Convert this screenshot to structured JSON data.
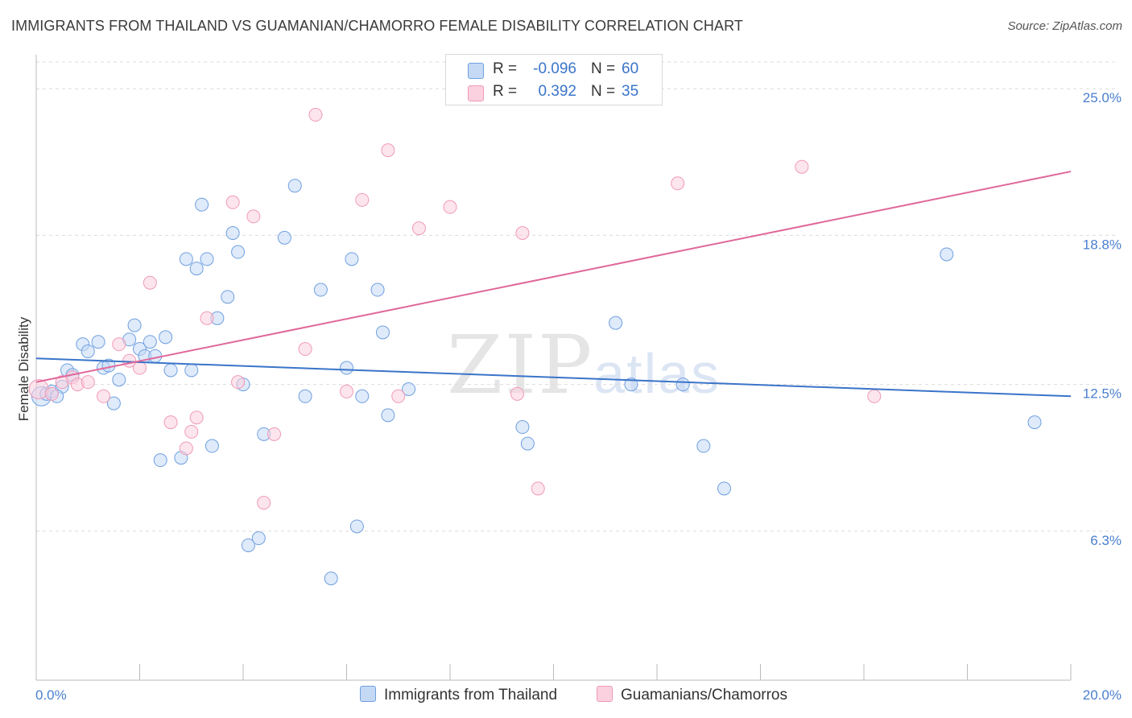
{
  "title": "IMMIGRANTS FROM THAILAND VS GUAMANIAN/CHAMORRO FEMALE DISABILITY CORRELATION CHART",
  "source": "Source: ZipAtlas.com",
  "watermark": {
    "zip": "ZIP",
    "atlas": "atlas"
  },
  "legend": {
    "series1": {
      "r_label": "R =",
      "r_value": "-0.096",
      "n_label": "N =",
      "n_value": "60"
    },
    "series2": {
      "r_label": "R =",
      "r_value": "0.392",
      "n_label": "N =",
      "n_value": "35"
    }
  },
  "bottom_legend": {
    "series1": "Immigrants from Thailand",
    "series2": "Guamanians/Chamorros"
  },
  "colors": {
    "series1": "#6fa0e0",
    "series1_line": "#3a74c9",
    "series1_fill": "#c5d9f5",
    "series2": "#f09ab8",
    "series2_line": "#e0679a",
    "series2_fill": "#fbd0df",
    "axis_text": "#4a7fcf",
    "grid": "#dcdcdc"
  },
  "chart_data": {
    "type": "scatter",
    "title": "IMMIGRANTS FROM THAILAND VS GUAMANIAN/CHAMORRO FEMALE DISABILITY CORRELATION CHART",
    "xlabel": "",
    "ylabel": "Female Disability",
    "xlim": [
      0,
      20
    ],
    "ylim": [
      0,
      26.3
    ],
    "x_tick_labels": [
      "0.0%",
      "20.0%"
    ],
    "y_ticks": [
      6.3,
      12.5,
      18.8,
      25.0
    ],
    "y_tick_labels": [
      "6.3%",
      "12.5%",
      "18.8%",
      "25.0%"
    ],
    "grid": true,
    "series": [
      {
        "name": "Immigrants from Thailand",
        "trend": {
          "x": [
            0,
            20
          ],
          "y": [
            13.6,
            12.0
          ]
        },
        "points": [
          [
            0.1,
            12.0
          ],
          [
            0.2,
            12.1
          ],
          [
            0.3,
            12.2
          ],
          [
            0.5,
            12.4
          ],
          [
            0.6,
            13.1
          ],
          [
            0.7,
            12.9
          ],
          [
            0.4,
            12.0
          ],
          [
            0.9,
            14.2
          ],
          [
            1.0,
            13.9
          ],
          [
            1.2,
            14.3
          ],
          [
            1.3,
            13.2
          ],
          [
            1.4,
            13.3
          ],
          [
            1.5,
            11.7
          ],
          [
            1.6,
            12.7
          ],
          [
            1.8,
            14.4
          ],
          [
            1.9,
            15.0
          ],
          [
            2.0,
            14.0
          ],
          [
            2.1,
            13.7
          ],
          [
            2.2,
            14.3
          ],
          [
            2.3,
            13.7
          ],
          [
            2.5,
            14.5
          ],
          [
            2.4,
            9.3
          ],
          [
            2.6,
            13.1
          ],
          [
            2.8,
            9.4
          ],
          [
            2.9,
            17.8
          ],
          [
            3.0,
            13.1
          ],
          [
            3.1,
            17.4
          ],
          [
            3.2,
            20.1
          ],
          [
            3.3,
            17.8
          ],
          [
            3.4,
            9.9
          ],
          [
            3.5,
            15.3
          ],
          [
            3.7,
            16.2
          ],
          [
            3.8,
            18.9
          ],
          [
            3.9,
            18.1
          ],
          [
            4.0,
            12.5
          ],
          [
            4.1,
            5.7
          ],
          [
            4.3,
            6.0
          ],
          [
            4.4,
            10.4
          ],
          [
            5.0,
            20.9
          ],
          [
            4.8,
            18.7
          ],
          [
            5.2,
            12.0
          ],
          [
            5.5,
            16.5
          ],
          [
            5.7,
            4.3
          ],
          [
            6.0,
            13.2
          ],
          [
            6.1,
            17.8
          ],
          [
            6.2,
            6.5
          ],
          [
            6.3,
            12.0
          ],
          [
            6.6,
            16.5
          ],
          [
            6.7,
            14.7
          ],
          [
            6.8,
            11.2
          ],
          [
            7.2,
            12.3
          ],
          [
            9.4,
            10.7
          ],
          [
            9.5,
            10.0
          ],
          [
            11.2,
            15.1
          ],
          [
            11.5,
            12.5
          ],
          [
            12.5,
            12.5
          ],
          [
            12.9,
            9.9
          ],
          [
            13.3,
            8.1
          ],
          [
            17.6,
            18.0
          ],
          [
            19.3,
            10.9
          ]
        ]
      },
      {
        "name": "Guamanians/Chamorros",
        "trend": {
          "x": [
            0,
            20
          ],
          "y": [
            12.6,
            21.5
          ]
        },
        "points": [
          [
            0.05,
            12.3
          ],
          [
            0.3,
            12.1
          ],
          [
            0.5,
            12.6
          ],
          [
            0.7,
            12.8
          ],
          [
            0.8,
            12.5
          ],
          [
            1.0,
            12.6
          ],
          [
            1.3,
            12.0
          ],
          [
            1.6,
            14.2
          ],
          [
            1.8,
            13.5
          ],
          [
            2.0,
            13.2
          ],
          [
            2.2,
            16.8
          ],
          [
            2.6,
            10.9
          ],
          [
            2.9,
            9.8
          ],
          [
            3.0,
            10.5
          ],
          [
            3.1,
            11.1
          ],
          [
            3.3,
            15.3
          ],
          [
            3.8,
            20.2
          ],
          [
            3.9,
            12.6
          ],
          [
            4.2,
            19.6
          ],
          [
            4.4,
            7.5
          ],
          [
            4.6,
            10.4
          ],
          [
            5.2,
            14.0
          ],
          [
            5.4,
            23.9
          ],
          [
            6.0,
            12.2
          ],
          [
            6.3,
            20.3
          ],
          [
            6.8,
            22.4
          ],
          [
            7.0,
            12.0
          ],
          [
            7.4,
            19.1
          ],
          [
            8.0,
            20.0
          ],
          [
            9.3,
            12.1
          ],
          [
            9.4,
            18.9
          ],
          [
            9.7,
            8.1
          ],
          [
            12.4,
            21.0
          ],
          [
            14.8,
            21.7
          ],
          [
            16.2,
            12.0
          ]
        ]
      }
    ]
  }
}
